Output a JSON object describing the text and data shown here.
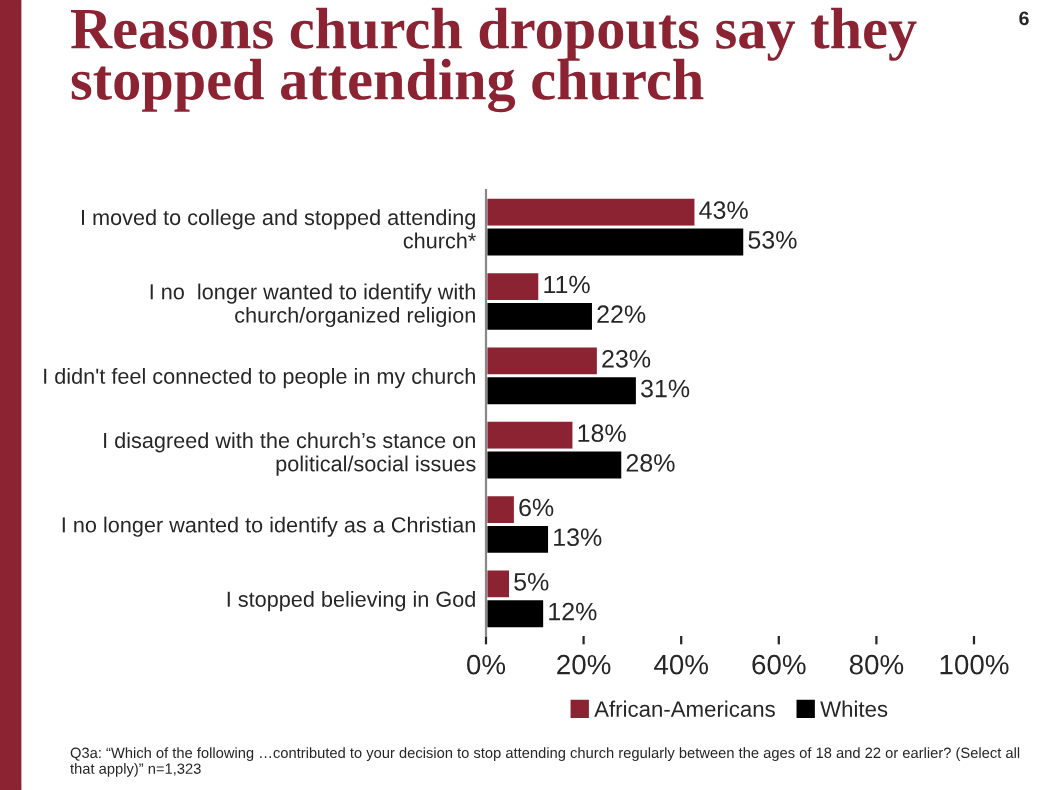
{
  "chart_data": {
    "type": "bar",
    "orientation": "horizontal",
    "title": "Reasons church dropouts say they\nstopped attending church",
    "categories": [
      "I moved to college and stopped attending\nchurch*",
      "I no  longer wanted to identify with\nchurch/organized religion",
      "I didn't feel connected to people in my church",
      "I disagreed with the church’s stance on\npolitical/social issues",
      "I no longer wanted to identify as a Christian",
      "I stopped believing in God"
    ],
    "series": [
      {
        "name": "African-Americans",
        "color": "#8b2332",
        "values": [
          43,
          11,
          23,
          18,
          6,
          5
        ],
        "value_labels": [
          "43%",
          "11%",
          "23%",
          "18%",
          "6%",
          "5%"
        ]
      },
      {
        "name": "Whites",
        "color": "#000000",
        "values": [
          53,
          22,
          31,
          28,
          13,
          12
        ],
        "value_labels": [
          "53%",
          "22%",
          "31%",
          "28%",
          "13%",
          "12%"
        ]
      }
    ],
    "xlim": [
      0,
      100
    ],
    "xticks": [
      {
        "value": 0,
        "label": "0%"
      },
      {
        "value": 20,
        "label": "20%"
      },
      {
        "value": 40,
        "label": "40%"
      },
      {
        "value": 60,
        "label": "60%"
      },
      {
        "value": 80,
        "label": "80%"
      },
      {
        "value": 100,
        "label": "100%"
      }
    ],
    "grid": false,
    "legend": "bottom",
    "annotations": [
      "6",
      "Q3a: “Which of the following …contributed to your decision to stop attending church regularly between the ages of 18 and 22 or earlier? (Select all that apply)” n=1,323"
    ]
  }
}
